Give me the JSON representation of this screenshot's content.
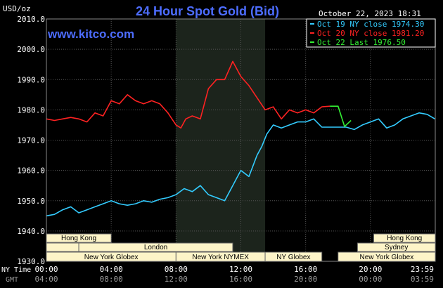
{
  "chart_data": {
    "type": "line",
    "title": "24 Hour Spot Gold (Bid)",
    "unit_label": "USD/oz",
    "timestamp": "October 22, 2023 18:31",
    "source_url": "www.kitco.com",
    "ylim": [
      1930,
      2010
    ],
    "y_ticks": [
      "2010.0",
      "2000.0",
      "1990.0",
      "1980.0",
      "1970.0",
      "1960.0",
      "1950.0",
      "1940.0",
      "1930.0"
    ],
    "x_row_labels": {
      "ny": "NY Time",
      "gmt": "GMT"
    },
    "x_ticks_ny": [
      "00:00",
      "04:00",
      "08:00",
      "12:00",
      "16:00",
      "20:00",
      "23:59"
    ],
    "x_ticks_gmt": [
      "04:00",
      "08:00",
      "12:00",
      "16:00",
      "20:00",
      "00:00",
      "03:59"
    ],
    "grid": true,
    "shaded_session": {
      "from_hour": 8.0,
      "to_hour": 13.5
    },
    "legend": [
      {
        "label": "Oct 19 NY close 1974.30",
        "color": "#33ccff"
      },
      {
        "label": "Oct 20 NY close 1981.20",
        "color": "#ff2222"
      },
      {
        "label": "Oct 22 Last 1976.50",
        "color": "#33ee33"
      }
    ],
    "series": [
      {
        "color": "#33ccff",
        "x": [
          0,
          0.5,
          1,
          1.5,
          2,
          2.5,
          3,
          3.5,
          4,
          4.5,
          5,
          5.5,
          6,
          6.5,
          7,
          7.5,
          8,
          8.5,
          9,
          9.5,
          10,
          10.5,
          11,
          11.5,
          12,
          12.5,
          13,
          13.3,
          13.6,
          14,
          14.5,
          15,
          15.5,
          16,
          16.5,
          17,
          17.5,
          18,
          18.5,
          19,
          19.5,
          20,
          20.5,
          21,
          21.5,
          22,
          22.5,
          23,
          23.5,
          23.98
        ],
        "y": [
          1945,
          1945.5,
          1947,
          1948,
          1946,
          1947,
          1948,
          1949,
          1950,
          1949,
          1948.5,
          1949,
          1950,
          1949.5,
          1950.5,
          1951,
          1952,
          1954,
          1953,
          1955,
          1952,
          1951,
          1950,
          1955,
          1960,
          1958,
          1965,
          1968,
          1972,
          1975,
          1974,
          1975,
          1976,
          1976,
          1977,
          1974.3,
          1974.3,
          1974.3,
          1974.3,
          1973.5,
          1975,
          1976,
          1977,
          1974,
          1975,
          1977,
          1978,
          1979,
          1978.5,
          1977
        ]
      },
      {
        "color": "#ff2222",
        "x": [
          0,
          0.5,
          1,
          1.5,
          2,
          2.5,
          3,
          3.5,
          4,
          4.5,
          5,
          5.5,
          6,
          6.5,
          7,
          7.5,
          8,
          8.3,
          8.6,
          9,
          9.5,
          10,
          10.5,
          11,
          11.5,
          12,
          12.5,
          13,
          13.5,
          14,
          14.5,
          15,
          15.5,
          16,
          16.5,
          17,
          17.5
        ],
        "y": [
          1977,
          1976.5,
          1977,
          1977.5,
          1977,
          1976,
          1979,
          1978,
          1983,
          1982,
          1985,
          1983,
          1982,
          1983,
          1982,
          1979,
          1975,
          1974,
          1977,
          1978,
          1977,
          1987,
          1990,
          1990,
          1996,
          1991,
          1988,
          1984,
          1980,
          1981,
          1977,
          1980,
          1979,
          1980,
          1979,
          1981,
          1981.2
        ]
      },
      {
        "color": "#33ee33",
        "x": [
          17.5,
          18,
          18.4,
          18.8
        ],
        "y": [
          1981.2,
          1981.2,
          1974.5,
          1976.5
        ]
      }
    ],
    "sessions_top": [
      {
        "label": "Hong Kong",
        "from_hour": 0,
        "to_hour": 4
      },
      {
        "label": "Hong Kong",
        "from_hour": 20.2,
        "to_hour": 24
      }
    ],
    "sessions_mid": [
      {
        "label": "London",
        "from_hour": 2,
        "to_hour": 11.5
      },
      {
        "label": "Sydney",
        "from_hour": 19.2,
        "to_hour": 24
      }
    ],
    "sessions_mid_left": [
      {
        "label": "",
        "from_hour": 0,
        "to_hour": 2
      }
    ],
    "sessions_bottom": [
      {
        "label": "New York Globex",
        "from_hour": 0,
        "to_hour": 8
      },
      {
        "label": "New York NYMEX",
        "from_hour": 8,
        "to_hour": 13.5
      },
      {
        "label": "NY Globex",
        "from_hour": 13.5,
        "to_hour": 17
      },
      {
        "label": "New York Globex",
        "from_hour": 18,
        "to_hour": 24
      }
    ]
  },
  "colors": {
    "background": "#000000",
    "plot_bg": "#000000",
    "grid": "#555555",
    "axis_text": "#ffffff",
    "title": "#4d6dff",
    "url": "#4d6dff",
    "session_fill": "#fdf4c8",
    "session_text": "#000000",
    "shade": "#1c241c"
  }
}
